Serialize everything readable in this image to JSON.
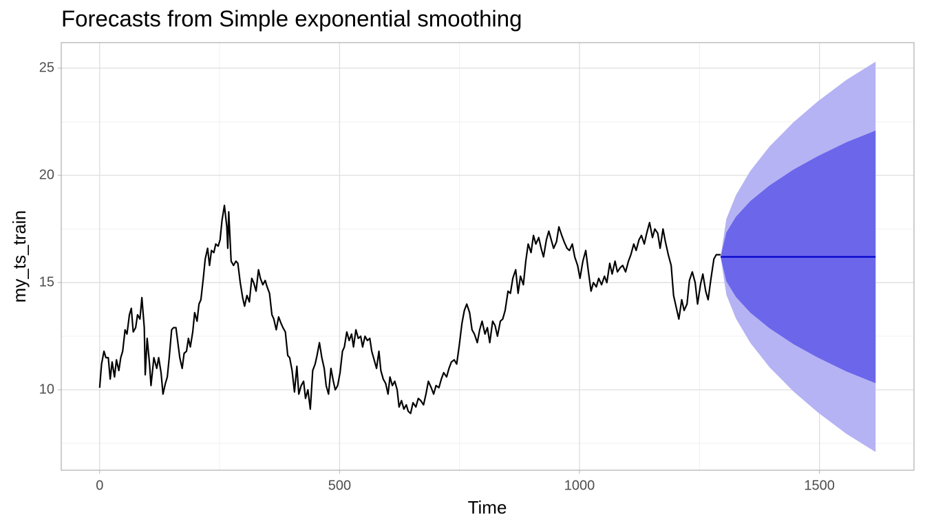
{
  "chart_data": {
    "type": "line",
    "title": "Forecasts from Simple exponential smoothing",
    "xlabel": "Time",
    "ylabel": "my_ts_train",
    "xlim": [
      -80,
      1697
    ],
    "ylim": [
      6.25,
      26.19
    ],
    "xticks": [
      0,
      500,
      1000,
      1500
    ],
    "yticks": [
      10,
      15,
      20,
      25
    ],
    "x_minor_grid": [
      250,
      750,
      1250
    ],
    "y_minor_grid": [
      7.5,
      12.5,
      17.5,
      22.5
    ],
    "grid": true,
    "series": [
      {
        "color": "#000000",
        "x": [
          0,
          4,
          9,
          13,
          18,
          22,
          26,
          31,
          35,
          40,
          44,
          48,
          53,
          57,
          62,
          66,
          70,
          75,
          79,
          84,
          88,
          93,
          95,
          99,
          104,
          107,
          113,
          119,
          123,
          128,
          132,
          137,
          141,
          145,
          150,
          154,
          159,
          163,
          167,
          172,
          176,
          181,
          185,
          189,
          194,
          198,
          203,
          207,
          211,
          216,
          220,
          225,
          229,
          233,
          238,
          242,
          247,
          251,
          255,
          260,
          265,
          267,
          269,
          274,
          279,
          284,
          288,
          293,
          298,
          302,
          307,
          312,
          317,
          321,
          326,
          331,
          335,
          340,
          345,
          349,
          354,
          359,
          363,
          368,
          373,
          378,
          382,
          387,
          392,
          396,
          401,
          406,
          411,
          415,
          420,
          425,
          429,
          434,
          439,
          444,
          449,
          453,
          458,
          463,
          468,
          472,
          477,
          482,
          487,
          491,
          496,
          501,
          506,
          510,
          515,
          520,
          525,
          529,
          534,
          539,
          544,
          548,
          553,
          558,
          563,
          567,
          572,
          577,
          582,
          586,
          591,
          596,
          601,
          605,
          610,
          615,
          620,
          624,
          629,
          634,
          639,
          643,
          648,
          653,
          659,
          664,
          669,
          675,
          680,
          685,
          691,
          696,
          701,
          707,
          712,
          717,
          723,
          728,
          733,
          739,
          744,
          749,
          755,
          760,
          765,
          771,
          776,
          781,
          787,
          792,
          797,
          803,
          808,
          813,
          819,
          824,
          829,
          835,
          840,
          845,
          851,
          856,
          861,
          867,
          872,
          877,
          883,
          888,
          893,
          899,
          904,
          909,
          915,
          920,
          925,
          931,
          936,
          941,
          946,
          952,
          957,
          963,
          968,
          974,
          979,
          985,
          990,
          996,
          1001,
          1007,
          1013,
          1018,
          1024,
          1029,
          1035,
          1040,
          1046,
          1052,
          1057,
          1063,
          1068,
          1074,
          1079,
          1085,
          1090,
          1096,
          1102,
          1107,
          1113,
          1118,
          1124,
          1129,
          1135,
          1140,
          1146,
          1152,
          1157,
          1163,
          1168,
          1174,
          1179,
          1185,
          1191,
          1196,
          1202,
          1207,
          1213,
          1218,
          1224,
          1229,
          1235,
          1241,
          1246,
          1252,
          1257,
          1263,
          1268,
          1274,
          1280,
          1285,
          1294
        ],
        "values": [
          10.1,
          11.2,
          11.8,
          11.5,
          11.5,
          10.5,
          11.3,
          10.6,
          11.4,
          10.9,
          11.5,
          11.8,
          12.8,
          12.6,
          13.5,
          13.8,
          12.7,
          12.9,
          13.5,
          13.3,
          14.3,
          12.9,
          10.7,
          12.4,
          11.2,
          10.2,
          11.5,
          11.0,
          11.5,
          10.8,
          9.8,
          10.3,
          10.6,
          11.5,
          12.8,
          12.9,
          12.9,
          12.2,
          11.5,
          11.0,
          11.7,
          11.8,
          12.4,
          12.0,
          12.7,
          13.6,
          13.2,
          14.0,
          14.2,
          15.2,
          16.1,
          16.6,
          15.8,
          16.5,
          16.4,
          16.8,
          16.7,
          17.0,
          17.9,
          18.6,
          17.6,
          16.6,
          18.3,
          16.0,
          15.8,
          16.0,
          15.9,
          15.0,
          14.3,
          13.9,
          14.4,
          14.1,
          15.2,
          15.0,
          14.6,
          15.6,
          15.2,
          14.9,
          15.1,
          14.8,
          14.5,
          13.5,
          13.3,
          12.8,
          13.4,
          13.1,
          12.9,
          12.7,
          11.6,
          11.5,
          10.9,
          9.9,
          11.1,
          9.8,
          10.2,
          10.4,
          9.6,
          10.0,
          9.1,
          10.9,
          11.2,
          11.6,
          12.2,
          11.5,
          11.0,
          10.2,
          9.8,
          11.0,
          10.4,
          10.0,
          10.2,
          10.8,
          11.8,
          12.0,
          12.7,
          12.3,
          12.6,
          12.0,
          12.8,
          12.4,
          12.5,
          12.0,
          12.5,
          12.3,
          12.4,
          11.8,
          11.4,
          11.0,
          11.8,
          10.9,
          10.5,
          10.3,
          9.8,
          10.6,
          10.2,
          10.4,
          10.0,
          9.2,
          9.5,
          9.1,
          9.3,
          9.0,
          8.9,
          9.4,
          9.2,
          9.6,
          9.5,
          9.3,
          9.8,
          10.4,
          10.1,
          9.8,
          10.2,
          10.1,
          10.5,
          10.8,
          10.6,
          11.0,
          11.3,
          11.4,
          11.2,
          12.0,
          13.1,
          13.7,
          14.0,
          13.6,
          12.8,
          12.6,
          12.2,
          12.8,
          13.2,
          12.6,
          12.9,
          12.2,
          13.2,
          13.0,
          12.5,
          13.2,
          13.3,
          13.7,
          14.6,
          14.5,
          15.2,
          15.6,
          14.5,
          15.3,
          14.9,
          16.0,
          16.8,
          16.4,
          17.2,
          16.8,
          17.1,
          16.6,
          16.2,
          17.0,
          17.4,
          17.0,
          16.6,
          16.9,
          17.6,
          17.2,
          16.9,
          16.6,
          16.5,
          16.8,
          16.2,
          15.8,
          15.2,
          16.0,
          16.5,
          15.6,
          14.6,
          15.0,
          14.8,
          15.2,
          14.9,
          15.3,
          15.0,
          15.9,
          15.4,
          16.0,
          15.5,
          15.7,
          15.8,
          15.5,
          16.0,
          16.3,
          16.8,
          16.5,
          17.0,
          17.2,
          16.8,
          17.3,
          17.8,
          17.1,
          17.5,
          17.3,
          16.6,
          17.5,
          16.9,
          16.3,
          15.8,
          14.4,
          13.8,
          13.3,
          14.2,
          13.7,
          14.0,
          15.1,
          15.5,
          15.0,
          14.0,
          14.9,
          15.4,
          14.6,
          14.2,
          15.2,
          16.1,
          16.3,
          16.3
        ]
      }
    ],
    "forecast": {
      "x": [
        1294,
        1306,
        1326,
        1356,
        1396,
        1446,
        1496,
        1556,
        1617
      ],
      "mean": [
        16.2,
        16.2,
        16.2,
        16.2,
        16.2,
        16.2,
        16.2,
        16.2,
        16.2
      ],
      "lo80": [
        16.2,
        15.06,
        14.33,
        13.6,
        12.87,
        12.13,
        11.51,
        10.86,
        10.31
      ],
      "hi80": [
        16.2,
        17.34,
        18.07,
        18.8,
        19.53,
        20.27,
        20.89,
        21.54,
        22.09
      ],
      "lo95": [
        16.2,
        14.43,
        13.32,
        12.19,
        11.05,
        9.92,
        8.96,
        7.95,
        7.1
      ],
      "hi95": [
        16.2,
        17.97,
        19.08,
        20.21,
        21.35,
        22.48,
        23.44,
        24.45,
        25.3
      ],
      "color": "#0000cc",
      "color80": "#6b66ea",
      "color95": "#b5b3f3"
    }
  }
}
